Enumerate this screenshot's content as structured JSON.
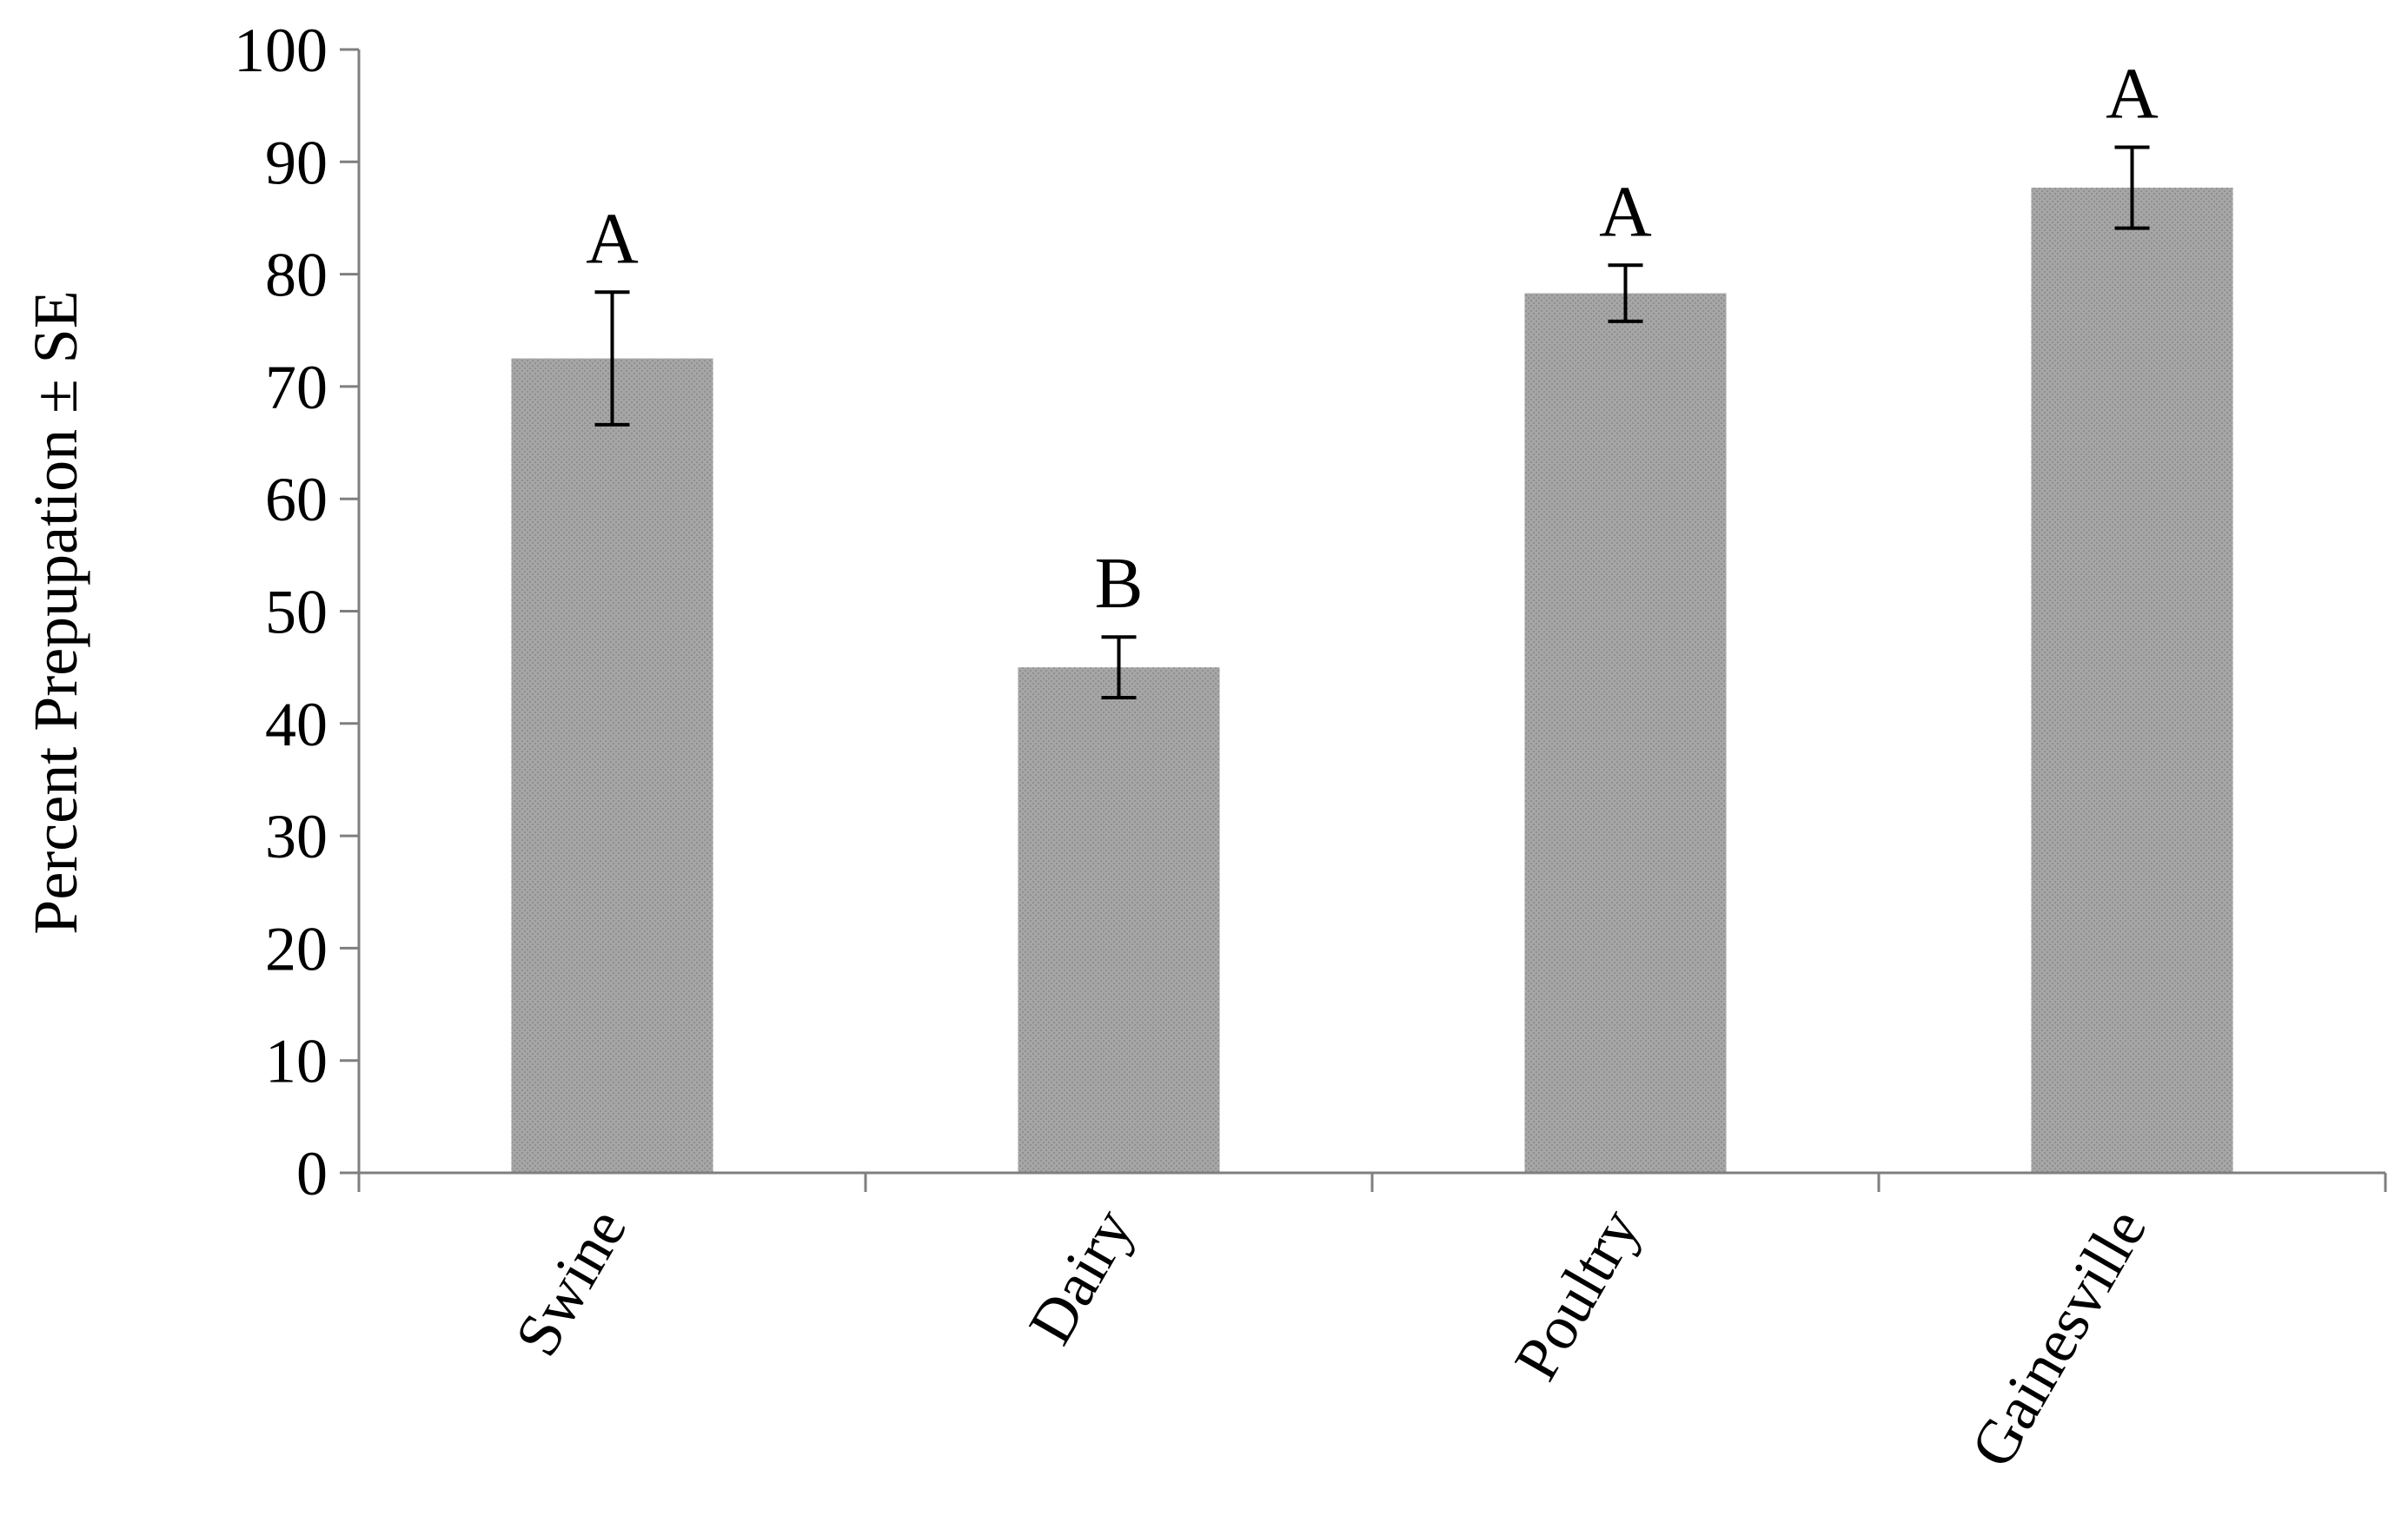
{
  "chart_data": {
    "type": "bar",
    "title": "",
    "xlabel": "",
    "ylabel": "Percent Prepupation ± SE",
    "ylim": [
      0,
      100
    ],
    "yticks": [
      0,
      10,
      20,
      30,
      40,
      50,
      60,
      70,
      80,
      90,
      100
    ],
    "categories": [
      "Swine",
      "Dairy",
      "Poultry",
      "Gainesville"
    ],
    "values": [
      72.5,
      45,
      78.3,
      87.7
    ],
    "errors": [
      5.9,
      2.7,
      2.5,
      3.6
    ],
    "significance_letters": [
      "A",
      "B",
      "A",
      "A"
    ],
    "grid": false,
    "legend": "none",
    "colors": {
      "bar": "#a6a6a6",
      "bar_dot": "#8c8c8c",
      "axis": "#7f7f7f",
      "error_bar": "#000000"
    }
  }
}
